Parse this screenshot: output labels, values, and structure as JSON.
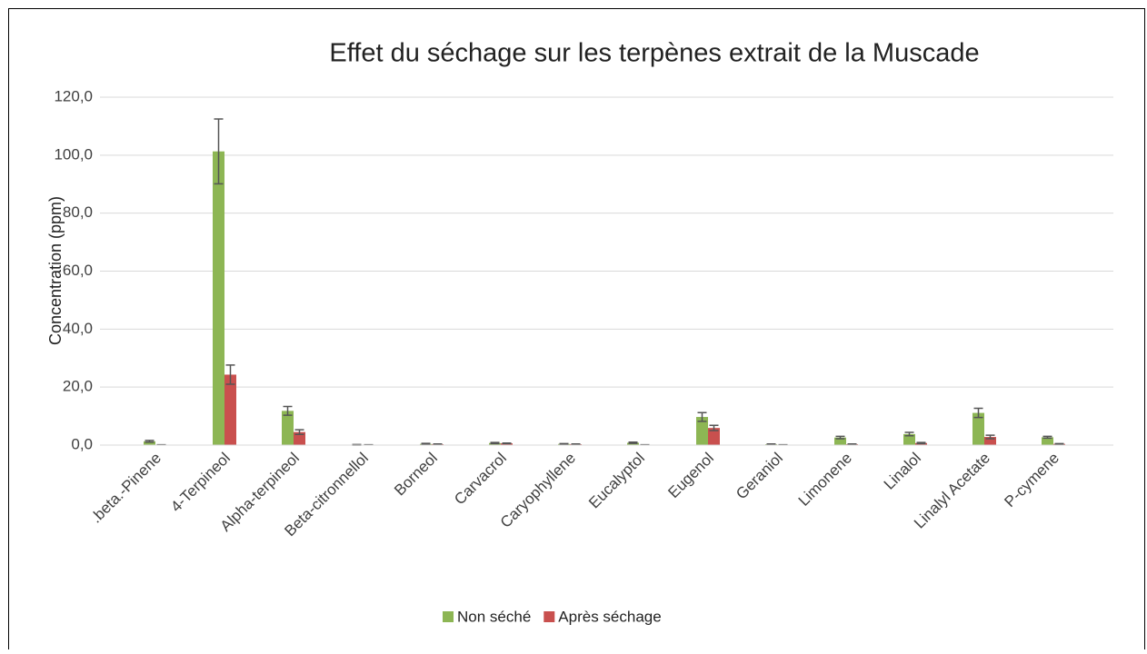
{
  "chart_data": {
    "type": "bar",
    "title": "Effet du séchage sur les terpènes extrait de la Muscade",
    "y_label": "Concentration (ppm)",
    "categories": [
      ".beta.-Pinene",
      "4-Terpineol",
      "Alpha-terpineol",
      "Beta-citronnellol",
      "Borneol",
      "Carvacrol",
      "Caryophyllene",
      "Eucalyptol",
      "Eugenol",
      "Geraniol",
      "Limonene",
      "Linalol",
      "Linalyl Acetate",
      "P-cymene"
    ],
    "series": [
      {
        "name": "Non séché",
        "color": "#8db654",
        "values": [
          1.3,
          101.3,
          11.8,
          0.1,
          0.4,
          0.7,
          0.4,
          0.8,
          9.7,
          0.3,
          2.6,
          3.8,
          11.1,
          2.7
        ],
        "errors": [
          0.3,
          11.2,
          1.5,
          0.1,
          0.2,
          0.2,
          0.1,
          0.2,
          1.5,
          0.1,
          0.4,
          0.6,
          1.6,
          0.3
        ]
      },
      {
        "name": "Après séchage",
        "color": "#c9504e",
        "values": [
          0.1,
          24.3,
          4.5,
          0.1,
          0.3,
          0.6,
          0.3,
          0.1,
          5.9,
          0.1,
          0.3,
          0.7,
          2.8,
          0.4
        ],
        "errors": [
          0.0,
          3.3,
          0.8,
          0.0,
          0.1,
          0.1,
          0.1,
          0.0,
          0.9,
          0.0,
          0.1,
          0.2,
          0.6,
          0.1
        ]
      }
    ],
    "ylim": [
      0,
      120
    ],
    "yticks": [
      {
        "value": 0,
        "label": "0,0"
      },
      {
        "value": 20,
        "label": "20,0"
      },
      {
        "value": 40,
        "label": "40,0"
      },
      {
        "value": 60,
        "label": "60,0"
      },
      {
        "value": 80,
        "label": "80,0"
      },
      {
        "value": 100,
        "label": "100,0"
      },
      {
        "value": 120,
        "label": "120,0"
      }
    ],
    "grid": true,
    "legend": "bottom"
  }
}
